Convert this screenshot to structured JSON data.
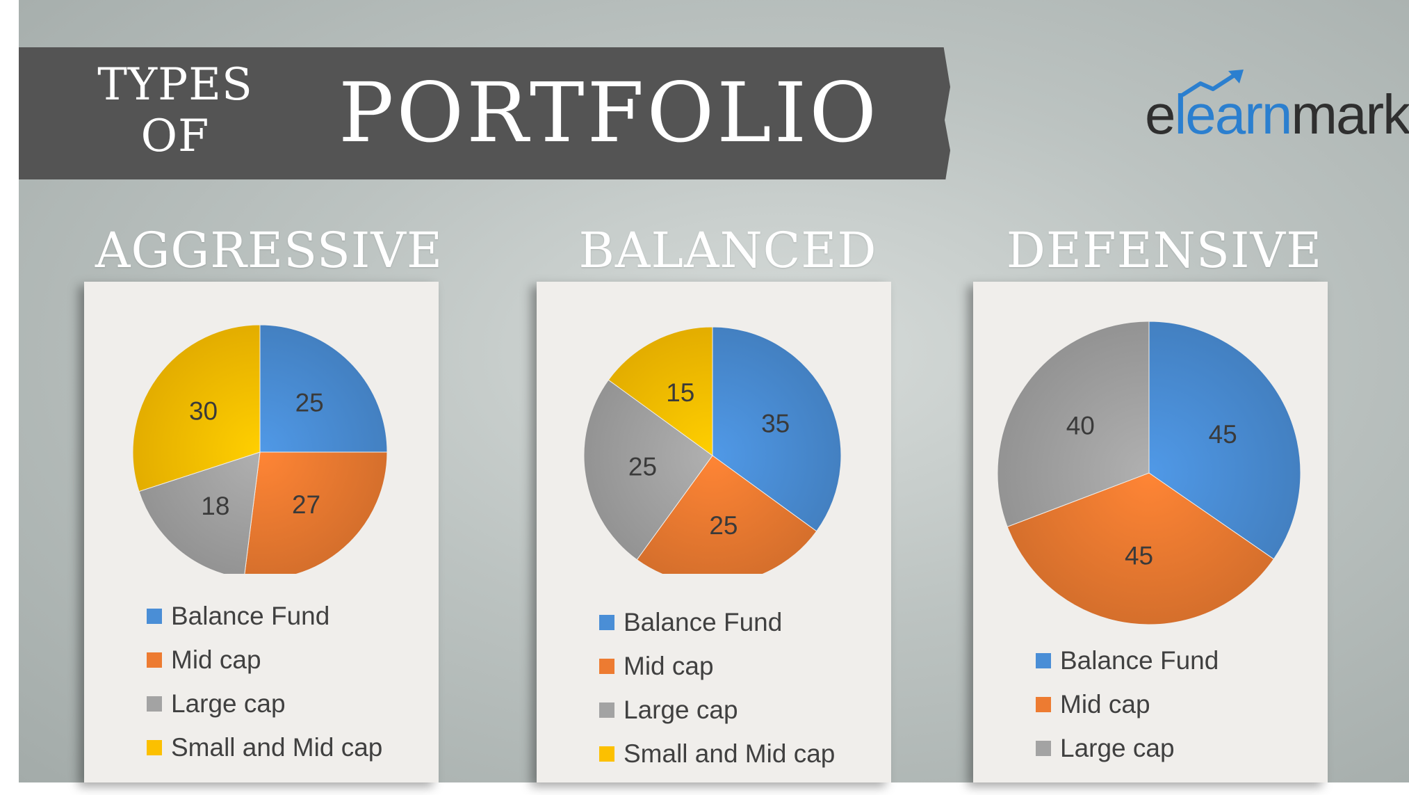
{
  "header": {
    "types_line1": "TYPES",
    "types_line2": "OF",
    "title": "PORTFOLIO"
  },
  "logo": {
    "part1": "e",
    "part2": "learn",
    "part3": "markets"
  },
  "colors": {
    "Balance Fund": "#4a8ed6",
    "Mid cap": "#ed7b31",
    "Large cap": "#a3a3a3",
    "Small and Mid cap": "#fcc000"
  },
  "chart_data": [
    {
      "type": "pie",
      "title": "AGGRESSIVE",
      "categories": [
        "Balance Fund",
        "Mid cap",
        "Large cap",
        "Small and Mid cap"
      ],
      "values": [
        25,
        27,
        18,
        30
      ],
      "legend": "bottom"
    },
    {
      "type": "pie",
      "title": "BALANCED",
      "categories": [
        "Balance Fund",
        "Mid cap",
        "Large cap",
        "Small and Mid cap"
      ],
      "values": [
        35,
        25,
        25,
        15
      ],
      "legend": "bottom"
    },
    {
      "type": "pie",
      "title": "DEFENSIVE",
      "categories": [
        "Balance Fund",
        "Mid cap",
        "Large cap"
      ],
      "values": [
        45,
        45,
        40
      ],
      "legend": "bottom"
    }
  ]
}
